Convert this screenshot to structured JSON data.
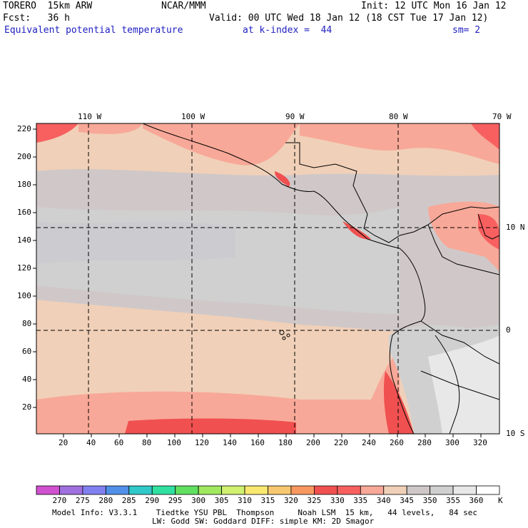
{
  "header": {
    "model": "TORERO  15km ARW",
    "org": "NCAR/MMM",
    "init": "Init: 12 UTC Mon 16 Jan 12",
    "fcst": "Fcst:   36 h",
    "valid": "Valid: 00 UTC Wed 18 Jan 12 (18 CST Tue 17 Jan 12)",
    "field": "Equivalent potential temperature",
    "level": "at k-index =  44",
    "smooth": "sm= 2"
  },
  "map": {
    "lon_labels": [
      "110 W",
      "100 W",
      "90 W",
      "80 W",
      "70 W"
    ],
    "lat_labels": [
      "10 N",
      "0",
      "10 S"
    ],
    "y_ticks": [
      "220",
      "200",
      "180",
      "160",
      "140",
      "120",
      "100",
      "80",
      "60",
      "40",
      "20"
    ],
    "x_ticks": [
      "20",
      "40",
      "60",
      "80",
      "100",
      "120",
      "140",
      "160",
      "180",
      "200",
      "220",
      "240",
      "260",
      "280",
      "300",
      "320"
    ]
  },
  "colorbar": {
    "levels": [
      "270",
      "275",
      "280",
      "285",
      "290",
      "295",
      "300",
      "305",
      "310",
      "315",
      "320",
      "325",
      "330",
      "335",
      "340",
      "345",
      "350",
      "355",
      "360"
    ],
    "unit": "K",
    "colors": [
      "#d050d0",
      "#a070e0",
      "#8080f0",
      "#5090e8",
      "#30c8c8",
      "#30e0a0",
      "#60e060",
      "#a0e860",
      "#d0f070",
      "#f8e870",
      "#f8c870",
      "#f89860",
      "#f05050",
      "#f86060",
      "#f8a898",
      "#f0d0b8",
      "#d0c8c8",
      "#d0d0d0",
      "#e8e8e8",
      "#ffffff"
    ]
  },
  "footer": {
    "line1": "Model Info: V3.3.1    Tiedtke YSU PBL  Thompson     Noah LSM  15 km,   44 levels,   84 sec",
    "line2": "LW: Godd SW: Goddard DIFF: simple KM: 2D Smagor"
  }
}
